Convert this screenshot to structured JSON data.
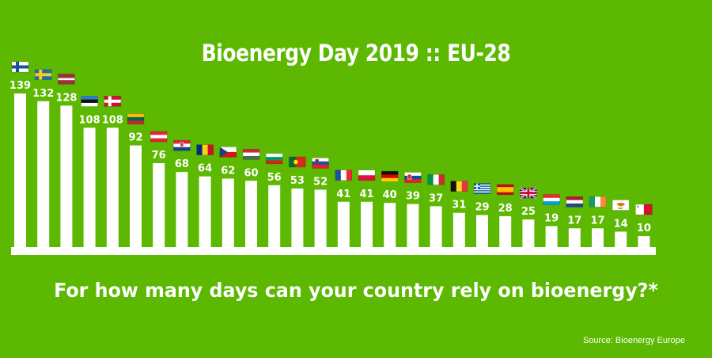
{
  "colors": {
    "background": "#5cb800",
    "bars": "#ffffff"
  },
  "chart_data": {
    "type": "bar",
    "title": "Bioenergy Day 2019 :: EU-28",
    "subtitle": "For how many days can your country rely on bioenergy?*",
    "source": "Source: Bioenergy Europe",
    "categories_are_flag_icons": true,
    "categories": [
      "finland-flag-icon",
      "sweden-flag-icon",
      "latvia-flag-icon",
      "estonia-flag-icon",
      "denmark-flag-icon",
      "lithuania-flag-icon",
      "austria-flag-icon",
      "croatia-flag-icon",
      "romania-flag-icon",
      "czech-republic-flag-icon",
      "hungary-flag-icon",
      "bulgaria-flag-icon",
      "portugal-flag-icon",
      "slovenia-flag-icon",
      "france-flag-icon",
      "poland-flag-icon",
      "germany-flag-icon",
      "slovakia-flag-icon",
      "italy-flag-icon",
      "belgium-flag-icon",
      "greece-flag-icon",
      "spain-flag-icon",
      "united-kingdom-flag-icon",
      "luxembourg-flag-icon",
      "netherlands-flag-icon",
      "ireland-flag-icon",
      "cyprus-flag-icon",
      "malta-flag-icon"
    ],
    "values": [
      139,
      132,
      128,
      108,
      108,
      92,
      76,
      68,
      64,
      62,
      60,
      56,
      53,
      52,
      41,
      41,
      40,
      39,
      37,
      31,
      29,
      28,
      25,
      19,
      17,
      17,
      14,
      10
    ],
    "data_labels": [
      "139",
      "132",
      "128",
      "108",
      "108",
      "92",
      "76",
      "68",
      "64",
      "62",
      "60",
      "56",
      "53",
      "52",
      "41",
      "41",
      "40",
      "39",
      "37",
      "31",
      "29",
      "28",
      "25",
      "19",
      "17",
      "17",
      "14",
      "10"
    ],
    "ylim": [
      0,
      139
    ],
    "grid": false,
    "legend": "none"
  }
}
